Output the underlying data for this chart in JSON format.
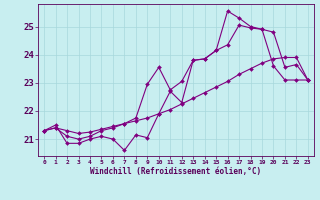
{
  "title": "",
  "xlabel": "Windchill (Refroidissement éolien,°C)",
  "ylabel": "",
  "bg_color": "#c8eef0",
  "grid_color": "#a8d8dc",
  "line_color": "#800080",
  "xlim": [
    -0.5,
    23.5
  ],
  "ylim": [
    20.4,
    25.8
  ],
  "xticks": [
    0,
    1,
    2,
    3,
    4,
    5,
    6,
    7,
    8,
    9,
    10,
    11,
    12,
    13,
    14,
    15,
    16,
    17,
    18,
    19,
    20,
    21,
    22,
    23
  ],
  "yticks": [
    21,
    22,
    23,
    24,
    25
  ],
  "lines": [
    {
      "x": [
        0,
        1,
        2,
        3,
        4,
        5,
        6,
        7,
        8,
        9,
        10,
        11,
        12,
        13,
        14,
        15,
        16,
        17,
        18,
        19,
        20,
        21,
        22,
        23
      ],
      "y": [
        21.3,
        21.5,
        20.85,
        20.85,
        21.0,
        21.1,
        21.0,
        20.6,
        21.15,
        21.05,
        21.9,
        22.7,
        22.3,
        23.8,
        23.85,
        24.15,
        25.55,
        25.3,
        25.0,
        24.9,
        23.6,
        23.1,
        23.1,
        23.1
      ]
    },
    {
      "x": [
        0,
        1,
        2,
        3,
        4,
        5,
        6,
        7,
        8,
        9,
        10,
        11,
        12,
        13,
        14,
        15,
        16,
        17,
        18,
        19,
        20,
        21,
        22,
        23
      ],
      "y": [
        21.3,
        21.4,
        21.3,
        21.2,
        21.25,
        21.35,
        21.45,
        21.55,
        21.65,
        21.75,
        21.9,
        22.05,
        22.25,
        22.45,
        22.65,
        22.85,
        23.05,
        23.3,
        23.5,
        23.7,
        23.85,
        23.9,
        23.9,
        23.1
      ]
    },
    {
      "x": [
        0,
        1,
        2,
        3,
        4,
        5,
        6,
        7,
        8,
        9,
        10,
        11,
        12,
        13,
        14,
        15,
        16,
        17,
        18,
        19,
        20,
        21,
        22,
        23
      ],
      "y": [
        21.3,
        21.4,
        21.1,
        21.0,
        21.1,
        21.3,
        21.4,
        21.55,
        21.75,
        22.95,
        23.55,
        22.75,
        23.05,
        23.8,
        23.85,
        24.15,
        24.35,
        25.05,
        24.95,
        24.9,
        24.8,
        23.55,
        23.65,
        23.1
      ]
    }
  ]
}
